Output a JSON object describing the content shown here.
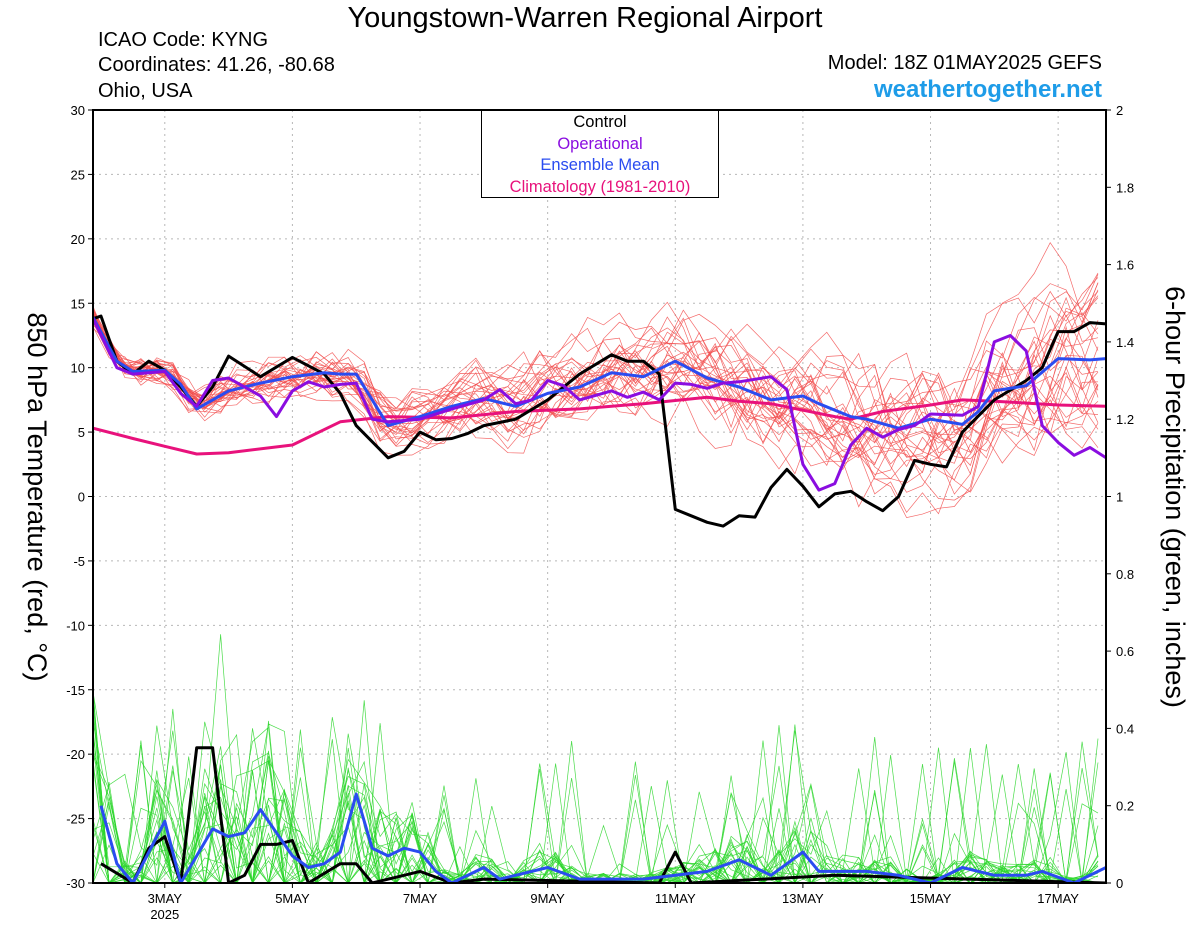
{
  "header": {
    "title": "Youngstown-Warren Regional Airport",
    "icao": "ICAO Code: KYNG",
    "coordinates": "Coordinates: 41.26, -80.68",
    "region": "Ohio, USA",
    "model": "Model: 18Z 01MAY2025 GEFS",
    "site": "weathertogether.net"
  },
  "colors": {
    "control": "#000000",
    "operational": "#8a0de0",
    "ensemble_mean": "#2a4cf0",
    "climatology": "#e8127c",
    "temp_members": "#f25050",
    "precip_members": "#2ad62a"
  },
  "chart_data": {
    "type": "line",
    "y_left": {
      "label": "850 hPa Temperature (red, °C)",
      "range": [
        -30,
        30
      ],
      "ticks": [
        "30",
        "25",
        "20",
        "15",
        "10",
        "5",
        "0",
        "-5",
        "-10",
        "-15",
        "-20",
        "-25",
        "-30"
      ]
    },
    "y_right": {
      "label": "6-hour Precipitation (green, inches)",
      "range": [
        0,
        2
      ],
      "ticks": [
        "2",
        "1.8",
        "1.6",
        "1.4",
        "1.2",
        "1",
        "0.8",
        "0.6",
        "0.4",
        "0.2",
        "0"
      ]
    },
    "x": {
      "range_days": [
        1.875,
        17.75
      ],
      "ticks": [
        {
          "day": 3,
          "label": "3MAY",
          "sub": "2025"
        },
        {
          "day": 5,
          "label": "5MAY",
          "sub": ""
        },
        {
          "day": 7,
          "label": "7MAY",
          "sub": ""
        },
        {
          "day": 9,
          "label": "9MAY",
          "sub": ""
        },
        {
          "day": 11,
          "label": "11MAY",
          "sub": ""
        },
        {
          "day": 13,
          "label": "13MAY",
          "sub": ""
        },
        {
          "day": 15,
          "label": "15MAY",
          "sub": ""
        },
        {
          "day": 17,
          "label": "17MAY",
          "sub": ""
        }
      ]
    },
    "grid": true,
    "legend": {
      "position": "top-center",
      "entries": [
        "Control",
        "Operational",
        "Ensemble Mean",
        "Climatology (1981-2010)"
      ]
    },
    "series": [
      {
        "name": "Control",
        "axis": "temp",
        "points": [
          [
            1.875,
            13.8
          ],
          [
            2.0,
            14.0
          ],
          [
            2.25,
            10.5
          ],
          [
            2.5,
            9.5
          ],
          [
            2.75,
            10.5
          ],
          [
            3.0,
            9.8
          ],
          [
            3.25,
            8.5
          ],
          [
            3.5,
            7.0
          ],
          [
            3.75,
            8.5
          ],
          [
            4.0,
            10.9
          ],
          [
            4.5,
            9.3
          ],
          [
            5.0,
            10.8
          ],
          [
            5.5,
            9.5
          ],
          [
            5.75,
            8.0
          ],
          [
            6.0,
            5.5
          ],
          [
            6.5,
            3.0
          ],
          [
            6.75,
            3.5
          ],
          [
            7.0,
            5.0
          ],
          [
            7.25,
            4.4
          ],
          [
            7.5,
            4.5
          ],
          [
            7.75,
            4.9
          ],
          [
            8.0,
            5.5
          ],
          [
            8.5,
            6.0
          ],
          [
            9.0,
            7.5
          ],
          [
            9.5,
            9.5
          ],
          [
            10.0,
            11.0
          ],
          [
            10.25,
            10.5
          ],
          [
            10.5,
            10.5
          ],
          [
            10.75,
            9.5
          ],
          [
            11.0,
            -1.0
          ],
          [
            11.25,
            -1.5
          ],
          [
            11.5,
            -2.0
          ],
          [
            11.75,
            -2.3
          ],
          [
            12.0,
            -1.5
          ],
          [
            12.25,
            -1.6
          ],
          [
            12.5,
            0.7
          ],
          [
            12.75,
            2.1
          ],
          [
            13.0,
            0.8
          ],
          [
            13.25,
            -0.8
          ],
          [
            13.5,
            0.2
          ],
          [
            13.75,
            0.4
          ],
          [
            14.0,
            -0.4
          ],
          [
            14.25,
            -1.1
          ],
          [
            14.5,
            0.0
          ],
          [
            14.75,
            2.8
          ],
          [
            15.0,
            2.5
          ],
          [
            15.25,
            2.3
          ],
          [
            15.5,
            5.0
          ],
          [
            16.0,
            7.5
          ],
          [
            16.5,
            9.0
          ],
          [
            16.75,
            10.0
          ],
          [
            17.0,
            12.8
          ],
          [
            17.25,
            12.8
          ],
          [
            17.5,
            13.5
          ],
          [
            17.75,
            13.4
          ]
        ]
      },
      {
        "name": "Operational",
        "axis": "temp",
        "points": [
          [
            1.875,
            13.8
          ],
          [
            2.25,
            10.0
          ],
          [
            2.5,
            9.5
          ],
          [
            2.75,
            9.6
          ],
          [
            3.0,
            9.7
          ],
          [
            3.25,
            8.0
          ],
          [
            3.5,
            7.0
          ],
          [
            3.75,
            9.0
          ],
          [
            4.0,
            9.2
          ],
          [
            4.25,
            8.5
          ],
          [
            4.5,
            7.8
          ],
          [
            4.75,
            6.2
          ],
          [
            5.0,
            8.2
          ],
          [
            5.25,
            8.9
          ],
          [
            5.5,
            8.5
          ],
          [
            5.75,
            8.7
          ],
          [
            6.0,
            8.8
          ],
          [
            6.25,
            6.0
          ],
          [
            6.5,
            5.8
          ],
          [
            7.0,
            6.0
          ],
          [
            7.5,
            6.8
          ],
          [
            8.0,
            7.5
          ],
          [
            8.25,
            8.3
          ],
          [
            8.5,
            7.2
          ],
          [
            8.75,
            7.5
          ],
          [
            9.0,
            9.0
          ],
          [
            9.25,
            8.6
          ],
          [
            9.5,
            7.5
          ],
          [
            10.0,
            8.2
          ],
          [
            10.25,
            7.7
          ],
          [
            10.5,
            8.1
          ],
          [
            10.75,
            7.5
          ],
          [
            11.0,
            8.8
          ],
          [
            11.25,
            8.7
          ],
          [
            11.5,
            8.4
          ],
          [
            11.75,
            8.8
          ],
          [
            12.0,
            8.9
          ],
          [
            12.5,
            9.3
          ],
          [
            12.75,
            8.3
          ],
          [
            13.0,
            2.5
          ],
          [
            13.25,
            0.5
          ],
          [
            13.5,
            1.0
          ],
          [
            13.75,
            4.0
          ],
          [
            14.0,
            5.3
          ],
          [
            14.25,
            4.6
          ],
          [
            14.5,
            5.2
          ],
          [
            14.75,
            5.5
          ],
          [
            15.0,
            6.4
          ],
          [
            15.5,
            6.3
          ],
          [
            15.75,
            7.0
          ],
          [
            16.0,
            12.0
          ],
          [
            16.25,
            12.5
          ],
          [
            16.5,
            11.3
          ],
          [
            16.75,
            5.5
          ],
          [
            17.0,
            4.2
          ],
          [
            17.25,
            3.2
          ],
          [
            17.5,
            3.8
          ],
          [
            17.75,
            3.0
          ]
        ]
      },
      {
        "name": "Ensemble Mean",
        "axis": "temp",
        "points": [
          [
            1.875,
            13.9
          ],
          [
            2.25,
            10.5
          ],
          [
            2.5,
            9.7
          ],
          [
            3.0,
            9.8
          ],
          [
            3.25,
            8.7
          ],
          [
            3.5,
            6.8
          ],
          [
            4.0,
            8.2
          ],
          [
            4.5,
            8.8
          ],
          [
            5.0,
            9.3
          ],
          [
            5.5,
            9.6
          ],
          [
            5.75,
            9.5
          ],
          [
            6.0,
            9.5
          ],
          [
            6.5,
            5.5
          ],
          [
            7.0,
            6.2
          ],
          [
            7.5,
            7.0
          ],
          [
            8.0,
            7.6
          ],
          [
            8.5,
            7.0
          ],
          [
            9.0,
            8.0
          ],
          [
            9.5,
            8.5
          ],
          [
            10.0,
            9.6
          ],
          [
            10.5,
            9.3
          ],
          [
            11.0,
            10.5
          ],
          [
            11.5,
            9.2
          ],
          [
            12.0,
            8.5
          ],
          [
            12.5,
            7.5
          ],
          [
            13.0,
            7.8
          ],
          [
            13.25,
            7.2
          ],
          [
            13.75,
            6.2
          ],
          [
            14.0,
            6.0
          ],
          [
            14.5,
            5.3
          ],
          [
            15.0,
            6.0
          ],
          [
            15.5,
            5.6
          ],
          [
            15.75,
            6.6
          ],
          [
            16.0,
            8.2
          ],
          [
            16.5,
            8.6
          ],
          [
            17.0,
            10.7
          ],
          [
            17.5,
            10.6
          ],
          [
            17.75,
            10.7
          ]
        ]
      },
      {
        "name": "Climatology (1981-2010)",
        "axis": "temp",
        "points": [
          [
            1.875,
            5.3
          ],
          [
            2.5,
            4.5
          ],
          [
            3.0,
            3.9
          ],
          [
            3.5,
            3.3
          ],
          [
            4.0,
            3.4
          ],
          [
            5.0,
            4.0
          ],
          [
            5.75,
            5.8
          ],
          [
            6.5,
            6.2
          ],
          [
            7.5,
            6.1
          ],
          [
            8.5,
            6.6
          ],
          [
            9.5,
            6.8
          ],
          [
            10.5,
            7.2
          ],
          [
            11.5,
            7.7
          ],
          [
            12.0,
            7.4
          ],
          [
            12.5,
            7.2
          ],
          [
            13.0,
            6.7
          ],
          [
            13.5,
            6.2
          ],
          [
            13.75,
            6.0
          ],
          [
            14.25,
            6.6
          ],
          [
            15.0,
            7.1
          ],
          [
            15.5,
            7.5
          ],
          [
            16.0,
            7.4
          ],
          [
            17.0,
            7.1
          ],
          [
            17.75,
            7.0
          ]
        ]
      },
      {
        "name": "Control 6-hour Precipitation",
        "axis": "precip",
        "points": [
          [
            2.0,
            0.05
          ],
          [
            2.5,
            0.0
          ],
          [
            2.75,
            0.09
          ],
          [
            3.0,
            0.12
          ],
          [
            3.25,
            0.0
          ],
          [
            3.5,
            0.35
          ],
          [
            3.75,
            0.35
          ],
          [
            4.0,
            0.0
          ],
          [
            4.25,
            0.02
          ],
          [
            4.5,
            0.1
          ],
          [
            4.75,
            0.1
          ],
          [
            5.0,
            0.11
          ],
          [
            5.25,
            0.0
          ],
          [
            5.75,
            0.05
          ],
          [
            6.0,
            0.05
          ],
          [
            6.25,
            0.0
          ],
          [
            7.0,
            0.03
          ],
          [
            7.5,
            0.0
          ],
          [
            8.0,
            0.01
          ],
          [
            10.75,
            0.0
          ],
          [
            11.0,
            0.08
          ],
          [
            11.25,
            0.0
          ],
          [
            13.5,
            0.02
          ],
          [
            17.75,
            0.0
          ]
        ]
      },
      {
        "name": "Ensemble Mean 6-hour Precipitation",
        "axis": "precip",
        "points": [
          [
            2.0,
            0.2
          ],
          [
            2.25,
            0.05
          ],
          [
            2.5,
            0.0
          ],
          [
            3.0,
            0.16
          ],
          [
            3.25,
            0.0
          ],
          [
            3.75,
            0.14
          ],
          [
            4.0,
            0.12
          ],
          [
            4.25,
            0.13
          ],
          [
            4.5,
            0.19
          ],
          [
            4.75,
            0.13
          ],
          [
            5.0,
            0.07
          ],
          [
            5.25,
            0.04
          ],
          [
            5.5,
            0.05
          ],
          [
            5.75,
            0.08
          ],
          [
            6.0,
            0.23
          ],
          [
            6.25,
            0.09
          ],
          [
            6.5,
            0.07
          ],
          [
            6.75,
            0.09
          ],
          [
            7.0,
            0.08
          ],
          [
            7.25,
            0.03
          ],
          [
            7.5,
            0.0
          ],
          [
            8.0,
            0.04
          ],
          [
            8.25,
            0.01
          ],
          [
            9.0,
            0.04
          ],
          [
            9.5,
            0.01
          ],
          [
            10.5,
            0.01
          ],
          [
            11.0,
            0.02
          ],
          [
            11.5,
            0.03
          ],
          [
            12.0,
            0.06
          ],
          [
            12.5,
            0.02
          ],
          [
            13.0,
            0.08
          ],
          [
            13.25,
            0.03
          ],
          [
            14.0,
            0.03
          ],
          [
            14.5,
            0.02
          ],
          [
            15.0,
            0.0
          ],
          [
            15.5,
            0.04
          ],
          [
            16.0,
            0.02
          ],
          [
            16.5,
            0.02
          ],
          [
            16.75,
            0.03
          ],
          [
            17.25,
            0.0
          ],
          [
            17.75,
            0.04
          ]
        ]
      }
    ]
  }
}
